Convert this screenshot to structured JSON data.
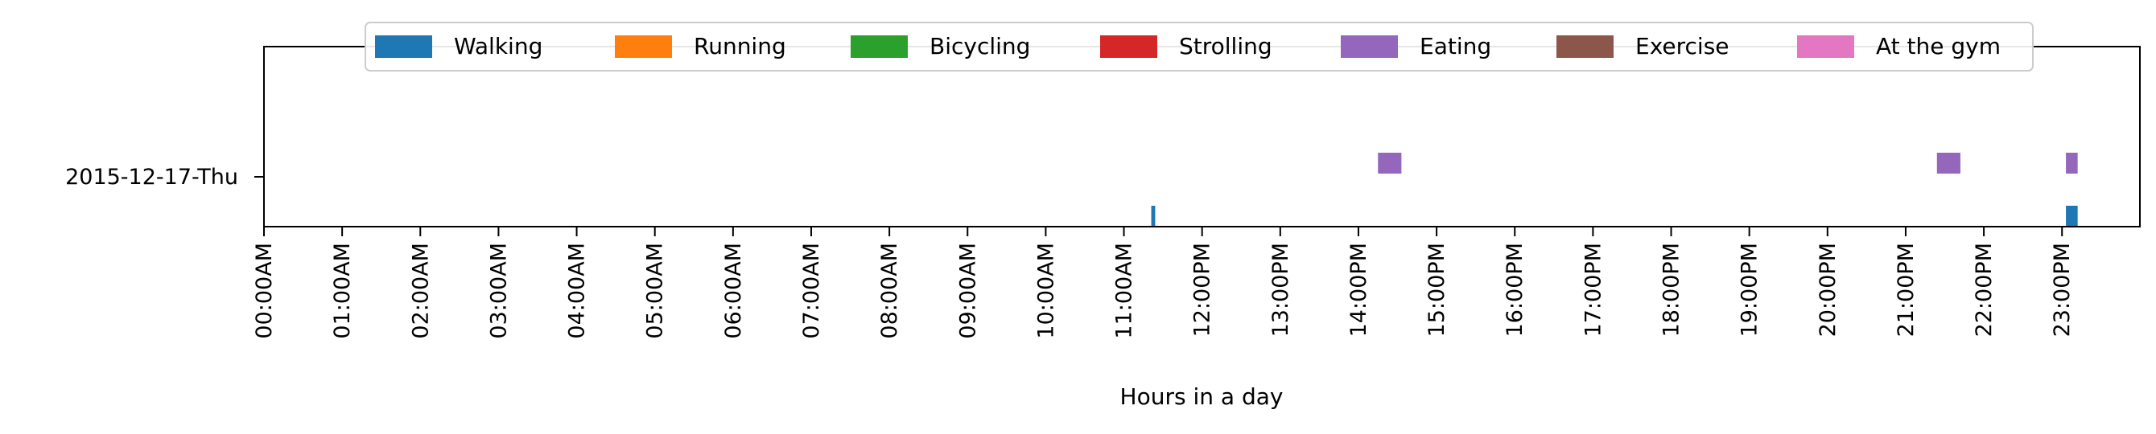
{
  "chart_data": {
    "type": "timeline",
    "xlabel": "Hours in a day",
    "xlim": [
      0,
      24
    ],
    "x_ticks": [
      "00:00AM",
      "01:00AM",
      "02:00AM",
      "03:00AM",
      "04:00AM",
      "05:00AM",
      "06:00AM",
      "07:00AM",
      "08:00AM",
      "09:00AM",
      "10:00AM",
      "11:00AM",
      "12:00PM",
      "13:00PM",
      "14:00PM",
      "15:00PM",
      "16:00PM",
      "17:00PM",
      "18:00PM",
      "19:00PM",
      "20:00PM",
      "21:00PM",
      "22:00PM",
      "23:00PM"
    ],
    "y_label": "2015-12-17-Thu",
    "legend_placement": "top-center",
    "legend": [
      {
        "name": "Walking",
        "color": "#1f77b4"
      },
      {
        "name": "Running",
        "color": "#ff7f0e"
      },
      {
        "name": "Bicycling",
        "color": "#2ca02c"
      },
      {
        "name": "Strolling",
        "color": "#d62728"
      },
      {
        "name": "Eating",
        "color": "#9467bd"
      },
      {
        "name": "Exercise",
        "color": "#8c564b"
      },
      {
        "name": "At the gym",
        "color": "#e377c2"
      }
    ],
    "series": [
      {
        "name": "Eating",
        "lane": "upper",
        "intervals": [
          [
            14.25,
            14.55
          ],
          [
            21.4,
            21.7
          ],
          [
            23.05,
            23.2
          ]
        ]
      },
      {
        "name": "Walking",
        "lane": "lower",
        "intervals": [
          [
            11.35,
            11.4
          ],
          [
            23.05,
            23.2
          ]
        ]
      }
    ]
  }
}
